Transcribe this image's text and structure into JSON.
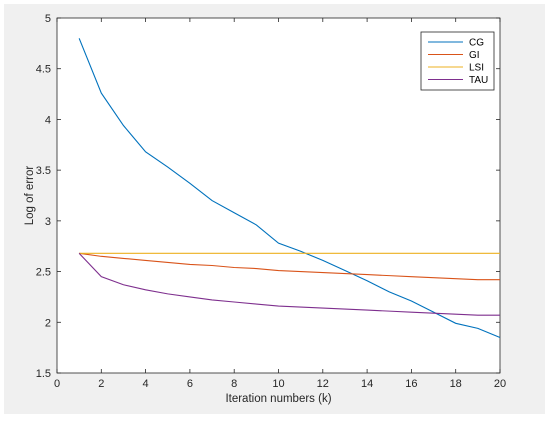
{
  "chart_data": {
    "type": "line",
    "title": "",
    "xlabel": "Iteration numbers (k)",
    "ylabel": "Log of error",
    "xlim": [
      0,
      20
    ],
    "ylim": [
      1.5,
      5
    ],
    "xticks": [
      0,
      2,
      4,
      6,
      8,
      10,
      12,
      14,
      16,
      18,
      20
    ],
    "yticks": [
      1.5,
      2,
      2.5,
      3,
      3.5,
      4,
      4.5,
      5
    ],
    "grid": false,
    "legend_position": "top-right",
    "x": [
      1,
      2,
      3,
      4,
      5,
      6,
      7,
      8,
      9,
      10,
      11,
      12,
      13,
      14,
      15,
      16,
      17,
      18,
      19,
      20
    ],
    "series": [
      {
        "name": "CG",
        "color": "#0072bd",
        "values": [
          4.8,
          4.26,
          3.94,
          3.68,
          3.53,
          3.37,
          3.2,
          3.08,
          2.96,
          2.78,
          2.7,
          2.61,
          2.51,
          2.41,
          2.3,
          2.21,
          2.1,
          1.99,
          1.94,
          1.85
        ]
      },
      {
        "name": "GI",
        "color": "#d95319",
        "values": [
          2.68,
          2.65,
          2.63,
          2.61,
          2.59,
          2.57,
          2.56,
          2.54,
          2.53,
          2.51,
          2.5,
          2.49,
          2.48,
          2.47,
          2.46,
          2.45,
          2.44,
          2.43,
          2.42,
          2.42
        ]
      },
      {
        "name": "LSI",
        "color": "#edb120",
        "values": [
          2.68,
          2.68,
          2.68,
          2.68,
          2.68,
          2.68,
          2.68,
          2.68,
          2.68,
          2.68,
          2.68,
          2.68,
          2.68,
          2.68,
          2.68,
          2.68,
          2.68,
          2.68,
          2.68,
          2.68
        ]
      },
      {
        "name": "TAU",
        "color": "#7e2f8e",
        "values": [
          2.68,
          2.45,
          2.37,
          2.32,
          2.28,
          2.25,
          2.22,
          2.2,
          2.18,
          2.16,
          2.15,
          2.14,
          2.13,
          2.12,
          2.11,
          2.1,
          2.09,
          2.08,
          2.07,
          2.07
        ]
      }
    ]
  }
}
